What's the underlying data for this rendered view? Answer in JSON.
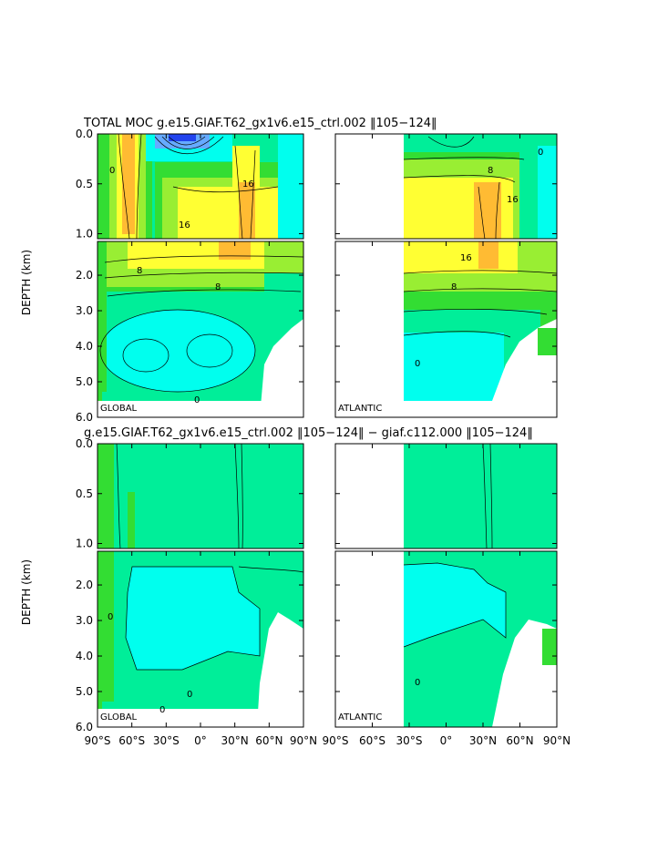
{
  "colors": {
    "land": "#ffffff",
    "frame": "#000000",
    "contour": "#000000",
    "fill_deep_neg": "#2244ee",
    "fill_neg": "#00ffee",
    "fill_zero": "#00ee99",
    "fill_low": "#33dd33",
    "fill_mid": "#99ee33",
    "fill_high": "#ffff33",
    "fill_peak": "#ffbb33"
  },
  "chart_data": [
    {
      "type": "heatmap",
      "title": "TOTAL MOC g.e15.GIAF.T62_gx1v6.e15_ctrl.002 ‖105−124‖",
      "ylabel": "DEPTH (km)",
      "yticks_upper": [
        "0.0",
        "0.5",
        "1.0"
      ],
      "yticks_lower": [
        "2.0",
        "3.0",
        "4.0",
        "5.0",
        "6.0"
      ],
      "panels": [
        {
          "name": "GLOBAL",
          "contour_labels": [
            "0",
            "16",
            "16",
            "8",
            "8",
            "0"
          ]
        },
        {
          "name": "ATLANTIC",
          "contour_labels": [
            "0",
            "8",
            "16",
            "16",
            "8",
            "0"
          ]
        }
      ]
    },
    {
      "type": "heatmap",
      "title": "g.e15.GIAF.T62_gx1v6.e15_ctrl.002 ‖105−124‖ − giaf.c112.000 ‖105−124‖",
      "ylabel": "DEPTH (km)",
      "yticks_upper": [
        "0.0",
        "0.5",
        "1.0"
      ],
      "yticks_lower": [
        "2.0",
        "3.0",
        "4.0",
        "5.0",
        "6.0"
      ],
      "xticks": [
        "90°S",
        "60°S",
        "30°S",
        "0°",
        "30°N",
        "60°N",
        "90°N"
      ],
      "xticks_right": [
        "90°S",
        "60°S",
        "30°S",
        "0°",
        "30°N",
        "60°N",
        "90°N"
      ],
      "panels": [
        {
          "name": "GLOBAL",
          "contour_labels": [
            "0",
            "0",
            "0"
          ]
        },
        {
          "name": "ATLANTIC",
          "contour_labels": [
            "0"
          ]
        }
      ]
    }
  ]
}
